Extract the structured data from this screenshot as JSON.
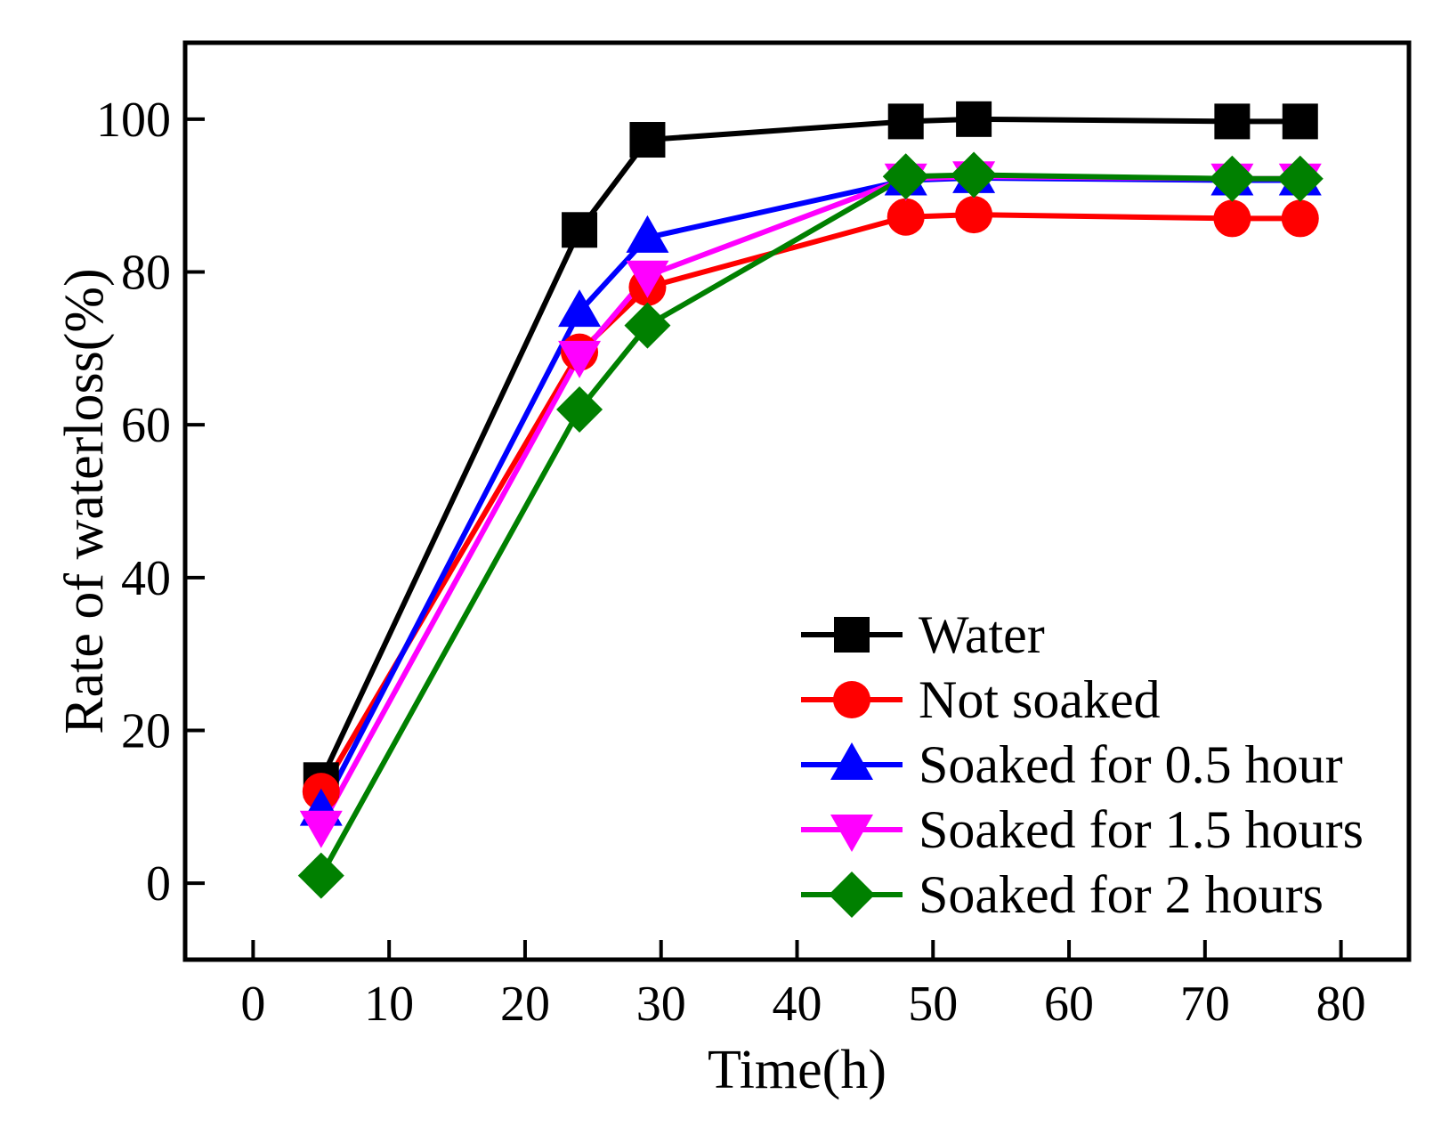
{
  "chart_data": {
    "type": "line",
    "title": "",
    "xlabel": "Time(h)",
    "ylabel": "Rate of waterloss(%)",
    "xlim": [
      -5,
      85
    ],
    "ylim": [
      -10,
      110
    ],
    "xticks": [
      0,
      10,
      20,
      30,
      40,
      50,
      60,
      70,
      80
    ],
    "yticks": [
      0,
      20,
      40,
      60,
      80,
      100
    ],
    "grid": false,
    "legend_position": "bottom-right",
    "x": [
      5,
      24,
      29,
      48,
      53,
      72,
      77
    ],
    "series": [
      {
        "name": "Water",
        "color": "#000000",
        "marker": "square",
        "values": [
          13.5,
          85.5,
          97.3,
          99.7,
          100.0,
          99.7,
          99.7
        ]
      },
      {
        "name": "Not soaked",
        "color": "#ff0000",
        "marker": "circle",
        "values": [
          12.0,
          69.5,
          78.0,
          87.2,
          87.5,
          87.0,
          87.0
        ]
      },
      {
        "name": "Soaked for 0.5 hour",
        "color": "#0000ff",
        "marker": "triangle-up",
        "values": [
          9.5,
          74.8,
          84.5,
          92.0,
          92.3,
          92.0,
          92.0
        ]
      },
      {
        "name": "Soaked for 1.5 hours",
        "color": "#ff00ff",
        "marker": "triangle-down",
        "values": [
          7.5,
          69.0,
          79.5,
          92.2,
          92.5,
          92.2,
          92.2
        ]
      },
      {
        "name": "Soaked for 2 hours",
        "color": "#008000",
        "marker": "diamond",
        "values": [
          1.0,
          62.0,
          73.0,
          92.5,
          92.7,
          92.2,
          92.2
        ]
      }
    ]
  }
}
